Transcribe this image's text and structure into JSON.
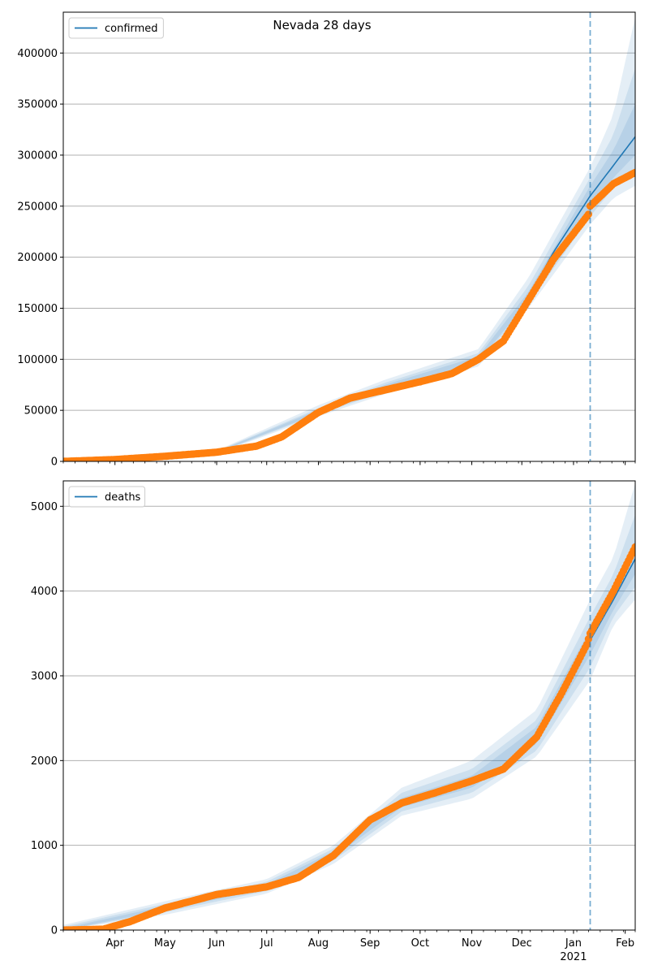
{
  "figure": {
    "title": "Nevada 28 days"
  },
  "colors": {
    "model_line": "#1f77b4",
    "observed": "#ff7f0e",
    "band": "#1f77b4",
    "grid": "#b0b0b0",
    "forecast_line": "#1f77b4"
  },
  "chart_data": [
    {
      "type": "line",
      "title": "Nevada 28 days",
      "legend": {
        "label": "confirmed",
        "placement": "top-left"
      },
      "x_range": [
        "2020-03-01",
        "2021-02-07"
      ],
      "ylim": [
        0,
        440000
      ],
      "yticks": [
        0,
        50000,
        100000,
        150000,
        200000,
        250000,
        300000,
        350000,
        400000
      ],
      "grid": {
        "y": true,
        "x": false
      },
      "forecast_start": "2021-01-11",
      "model_line": [
        [
          "2020-03-01",
          0
        ],
        [
          "2020-04-01",
          2000
        ],
        [
          "2020-05-01",
          5000
        ],
        [
          "2020-06-01",
          9000
        ],
        [
          "2020-06-25",
          15000
        ],
        [
          "2020-07-10",
          25000
        ],
        [
          "2020-08-01",
          48000
        ],
        [
          "2020-08-20",
          62000
        ],
        [
          "2020-09-10",
          72000
        ],
        [
          "2020-10-01",
          80000
        ],
        [
          "2020-10-20",
          88000
        ],
        [
          "2020-11-05",
          100000
        ],
        [
          "2020-11-20",
          120000
        ],
        [
          "2020-12-05",
          160000
        ],
        [
          "2020-12-20",
          205000
        ],
        [
          "2021-01-11",
          260000
        ],
        [
          "2021-01-25",
          290000
        ],
        [
          "2021-02-07",
          318000
        ]
      ],
      "observed_points": [
        [
          "2020-03-01",
          0
        ],
        [
          "2020-04-01",
          1800
        ],
        [
          "2020-05-01",
          5000
        ],
        [
          "2020-06-01",
          9000
        ],
        [
          "2020-06-25",
          15000
        ],
        [
          "2020-07-10",
          24000
        ],
        [
          "2020-08-01",
          48000
        ],
        [
          "2020-08-20",
          62000
        ],
        [
          "2020-09-10",
          70000
        ],
        [
          "2020-10-01",
          78000
        ],
        [
          "2020-10-20",
          86000
        ],
        [
          "2020-11-05",
          100000
        ],
        [
          "2020-11-20",
          118000
        ],
        [
          "2020-12-05",
          158000
        ],
        [
          "2020-12-20",
          198000
        ],
        [
          "2021-01-10",
          242000
        ],
        [
          "2021-01-11",
          250000
        ],
        [
          "2021-01-25",
          272000
        ],
        [
          "2021-02-07",
          283000
        ]
      ],
      "bands": [
        {
          "opacity": 0.12,
          "points": [
            [
              "2020-03-01",
              0,
              800
            ],
            [
              "2020-06-01",
              7500,
              10500
            ],
            [
              "2020-08-01",
              44000,
              55000
            ],
            [
              "2020-09-10",
              66000,
              80000
            ],
            [
              "2020-11-05",
              93000,
              110000
            ],
            [
              "2020-12-05",
              150000,
              180000
            ],
            [
              "2021-01-11",
              232000,
              288000
            ],
            [
              "2021-01-25",
              258000,
              340000
            ],
            [
              "2021-02-07",
              270000,
              435000
            ]
          ]
        },
        {
          "opacity": 0.12,
          "points": [
            [
              "2020-03-01",
              0,
              500
            ],
            [
              "2020-06-01",
              8000,
              10000
            ],
            [
              "2020-08-01",
              46000,
              52000
            ],
            [
              "2020-09-10",
              68000,
              77000
            ],
            [
              "2020-11-05",
              96000,
              106000
            ],
            [
              "2020-12-05",
              154000,
              172000
            ],
            [
              "2021-01-11",
              240000,
              278000
            ],
            [
              "2021-01-25",
              268000,
              320000
            ],
            [
              "2021-02-07",
              285000,
              385000
            ]
          ]
        },
        {
          "opacity": 0.12,
          "points": [
            [
              "2020-03-01",
              0,
              300
            ],
            [
              "2020-06-01",
              8500,
              9500
            ],
            [
              "2020-08-01",
              47000,
              50500
            ],
            [
              "2020-09-10",
              70000,
              75000
            ],
            [
              "2020-11-05",
              98000,
              103000
            ],
            [
              "2020-12-05",
              157000,
              166000
            ],
            [
              "2021-01-11",
              248000,
              270000
            ],
            [
              "2021-01-25",
              278000,
              305000
            ],
            [
              "2021-02-07",
              300000,
              350000
            ]
          ]
        }
      ]
    },
    {
      "type": "line",
      "title": "",
      "legend": {
        "label": "deaths",
        "placement": "top-left"
      },
      "x_range": [
        "2020-03-01",
        "2021-02-07"
      ],
      "ylim": [
        0,
        5300
      ],
      "yticks": [
        0,
        1000,
        2000,
        3000,
        4000,
        5000
      ],
      "grid": {
        "y": true,
        "x": false
      },
      "forecast_start": "2021-01-11",
      "xticks": [
        {
          "date": "2020-04-01",
          "label": "Apr"
        },
        {
          "date": "2020-05-01",
          "label": "May"
        },
        {
          "date": "2020-06-01",
          "label": "Jun"
        },
        {
          "date": "2020-07-01",
          "label": "Jul"
        },
        {
          "date": "2020-08-01",
          "label": "Aug"
        },
        {
          "date": "2020-09-01",
          "label": "Sep"
        },
        {
          "date": "2020-10-01",
          "label": "Oct"
        },
        {
          "date": "2020-11-01",
          "label": "Nov"
        },
        {
          "date": "2020-12-01",
          "label": "Dec"
        },
        {
          "date": "2021-01-01",
          "label": "Jan"
        },
        {
          "date": "2021-02-01",
          "label": "Feb"
        }
      ],
      "year_label": {
        "date": "2021-01-01",
        "label": "2021"
      },
      "model_line": [
        [
          "2020-03-01",
          0
        ],
        [
          "2020-03-25",
          10
        ],
        [
          "2020-04-10",
          90
        ],
        [
          "2020-05-01",
          260
        ],
        [
          "2020-06-01",
          420
        ],
        [
          "2020-07-01",
          510
        ],
        [
          "2020-07-20",
          620
        ],
        [
          "2020-08-10",
          900
        ],
        [
          "2020-09-01",
          1300
        ],
        [
          "2020-09-20",
          1500
        ],
        [
          "2020-10-10",
          1620
        ],
        [
          "2020-11-01",
          1750
        ],
        [
          "2020-11-20",
          1900
        ],
        [
          "2020-12-10",
          2300
        ],
        [
          "2020-12-25",
          2800
        ],
        [
          "2021-01-11",
          3420
        ],
        [
          "2021-01-25",
          3900
        ],
        [
          "2021-02-07",
          4380
        ]
      ],
      "observed_points": [
        [
          "2020-03-01",
          0
        ],
        [
          "2020-03-25",
          10
        ],
        [
          "2020-04-10",
          100
        ],
        [
          "2020-05-01",
          260
        ],
        [
          "2020-06-01",
          420
        ],
        [
          "2020-07-01",
          510
        ],
        [
          "2020-07-20",
          620
        ],
        [
          "2020-08-10",
          880
        ],
        [
          "2020-09-01",
          1300
        ],
        [
          "2020-09-20",
          1500
        ],
        [
          "2020-10-10",
          1620
        ],
        [
          "2020-11-01",
          1760
        ],
        [
          "2020-11-20",
          1900
        ],
        [
          "2020-12-10",
          2280
        ],
        [
          "2020-12-25",
          2800
        ],
        [
          "2021-01-09",
          3370
        ],
        [
          "2021-01-11",
          3500
        ],
        [
          "2021-01-25",
          4000
        ],
        [
          "2021-02-07",
          4520
        ]
      ],
      "bands": [
        {
          "opacity": 0.12,
          "points": [
            [
              "2020-03-01",
              0,
              60
            ],
            [
              "2020-05-01",
              180,
              340
            ],
            [
              "2020-07-01",
              430,
              600
            ],
            [
              "2020-08-10",
              780,
              1000
            ],
            [
              "2020-09-20",
              1350,
              1680
            ],
            [
              "2020-11-01",
              1550,
              2000
            ],
            [
              "2020-12-10",
              2050,
              2600
            ],
            [
              "2021-01-11",
              2950,
              3900
            ],
            [
              "2021-01-25",
              3600,
              4400
            ],
            [
              "2021-02-07",
              3900,
              5270
            ]
          ]
        },
        {
          "opacity": 0.12,
          "points": [
            [
              "2020-03-01",
              0,
              40
            ],
            [
              "2020-05-01",
              210,
              310
            ],
            [
              "2020-07-01",
              460,
              570
            ],
            [
              "2020-08-10",
              820,
              960
            ],
            [
              "2020-09-20",
              1400,
              1620
            ],
            [
              "2020-11-01",
              1620,
              1900
            ],
            [
              "2020-12-10",
              2120,
              2480
            ],
            [
              "2021-01-11",
              3100,
              3700
            ],
            [
              "2021-01-25",
              3700,
              4200
            ],
            [
              "2021-02-07",
              4050,
              4900
            ]
          ]
        },
        {
          "opacity": 0.12,
          "points": [
            [
              "2020-03-01",
              0,
              20
            ],
            [
              "2020-05-01",
              235,
              285
            ],
            [
              "2020-07-01",
              485,
              540
            ],
            [
              "2020-08-10",
              860,
              930
            ],
            [
              "2020-09-20",
              1450,
              1560
            ],
            [
              "2020-11-01",
              1680,
              1820
            ],
            [
              "2020-12-10",
              2200,
              2400
            ],
            [
              "2021-01-11",
              3250,
              3550
            ],
            [
              "2021-01-25",
              3780,
              4050
            ],
            [
              "2021-02-07",
              4200,
              4600
            ]
          ]
        }
      ]
    }
  ]
}
